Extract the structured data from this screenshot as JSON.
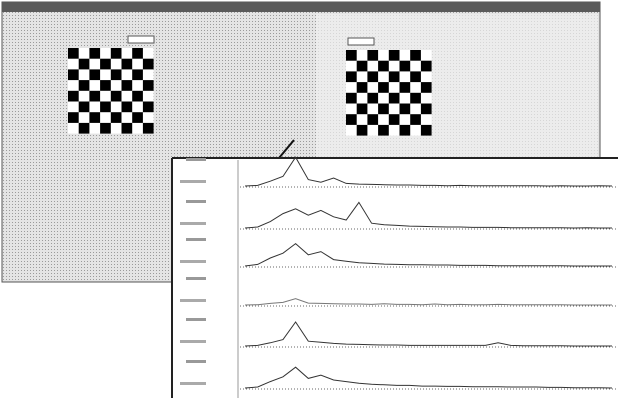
{
  "chart_data": [
    {
      "type": "line",
      "color": "#333333",
      "ylim": [
        0,
        100
      ],
      "values": [
        0,
        2,
        15,
        30,
        90,
        20,
        12,
        25,
        8,
        6,
        5,
        4,
        3,
        3,
        2,
        2,
        1,
        2,
        1,
        1,
        1,
        1,
        1,
        1,
        0,
        1,
        0,
        0,
        1,
        0
      ]
    },
    {
      "type": "line",
      "color": "#333333",
      "ylim": [
        0,
        100
      ],
      "values": [
        0,
        3,
        20,
        45,
        60,
        40,
        55,
        35,
        25,
        80,
        15,
        10,
        8,
        6,
        5,
        4,
        3,
        3,
        2,
        2,
        2,
        1,
        1,
        1,
        1,
        1,
        0,
        1,
        0,
        0
      ]
    },
    {
      "type": "line",
      "color": "#333333",
      "ylim": [
        0,
        100
      ],
      "values": [
        0,
        5,
        25,
        40,
        70,
        35,
        45,
        20,
        15,
        10,
        8,
        6,
        5,
        4,
        4,
        3,
        3,
        2,
        2,
        2,
        1,
        1,
        1,
        1,
        1,
        1,
        0,
        0,
        0,
        0
      ]
    },
    {
      "type": "line",
      "color": "#777777",
      "ylim": [
        0,
        100
      ],
      "values": [
        0,
        1,
        5,
        8,
        20,
        6,
        5,
        4,
        3,
        3,
        2,
        4,
        2,
        2,
        1,
        3,
        1,
        2,
        1,
        1,
        2,
        1,
        1,
        1,
        1,
        1,
        0,
        0,
        0,
        0
      ]
    },
    {
      "type": "line",
      "color": "#333333",
      "ylim": [
        0,
        100
      ],
      "values": [
        0,
        2,
        10,
        20,
        75,
        15,
        12,
        8,
        6,
        5,
        4,
        3,
        3,
        2,
        2,
        2,
        2,
        2,
        2,
        2,
        10,
        2,
        1,
        1,
        1,
        1,
        0,
        0,
        0,
        0
      ]
    },
    {
      "type": "line",
      "color": "#333333",
      "ylim": [
        0,
        100
      ],
      "values": [
        0,
        3,
        20,
        35,
        65,
        30,
        40,
        25,
        20,
        15,
        12,
        10,
        8,
        8,
        6,
        6,
        5,
        5,
        4,
        4,
        4,
        3,
        3,
        3,
        2,
        2,
        1,
        1,
        1,
        0
      ]
    }
  ]
}
